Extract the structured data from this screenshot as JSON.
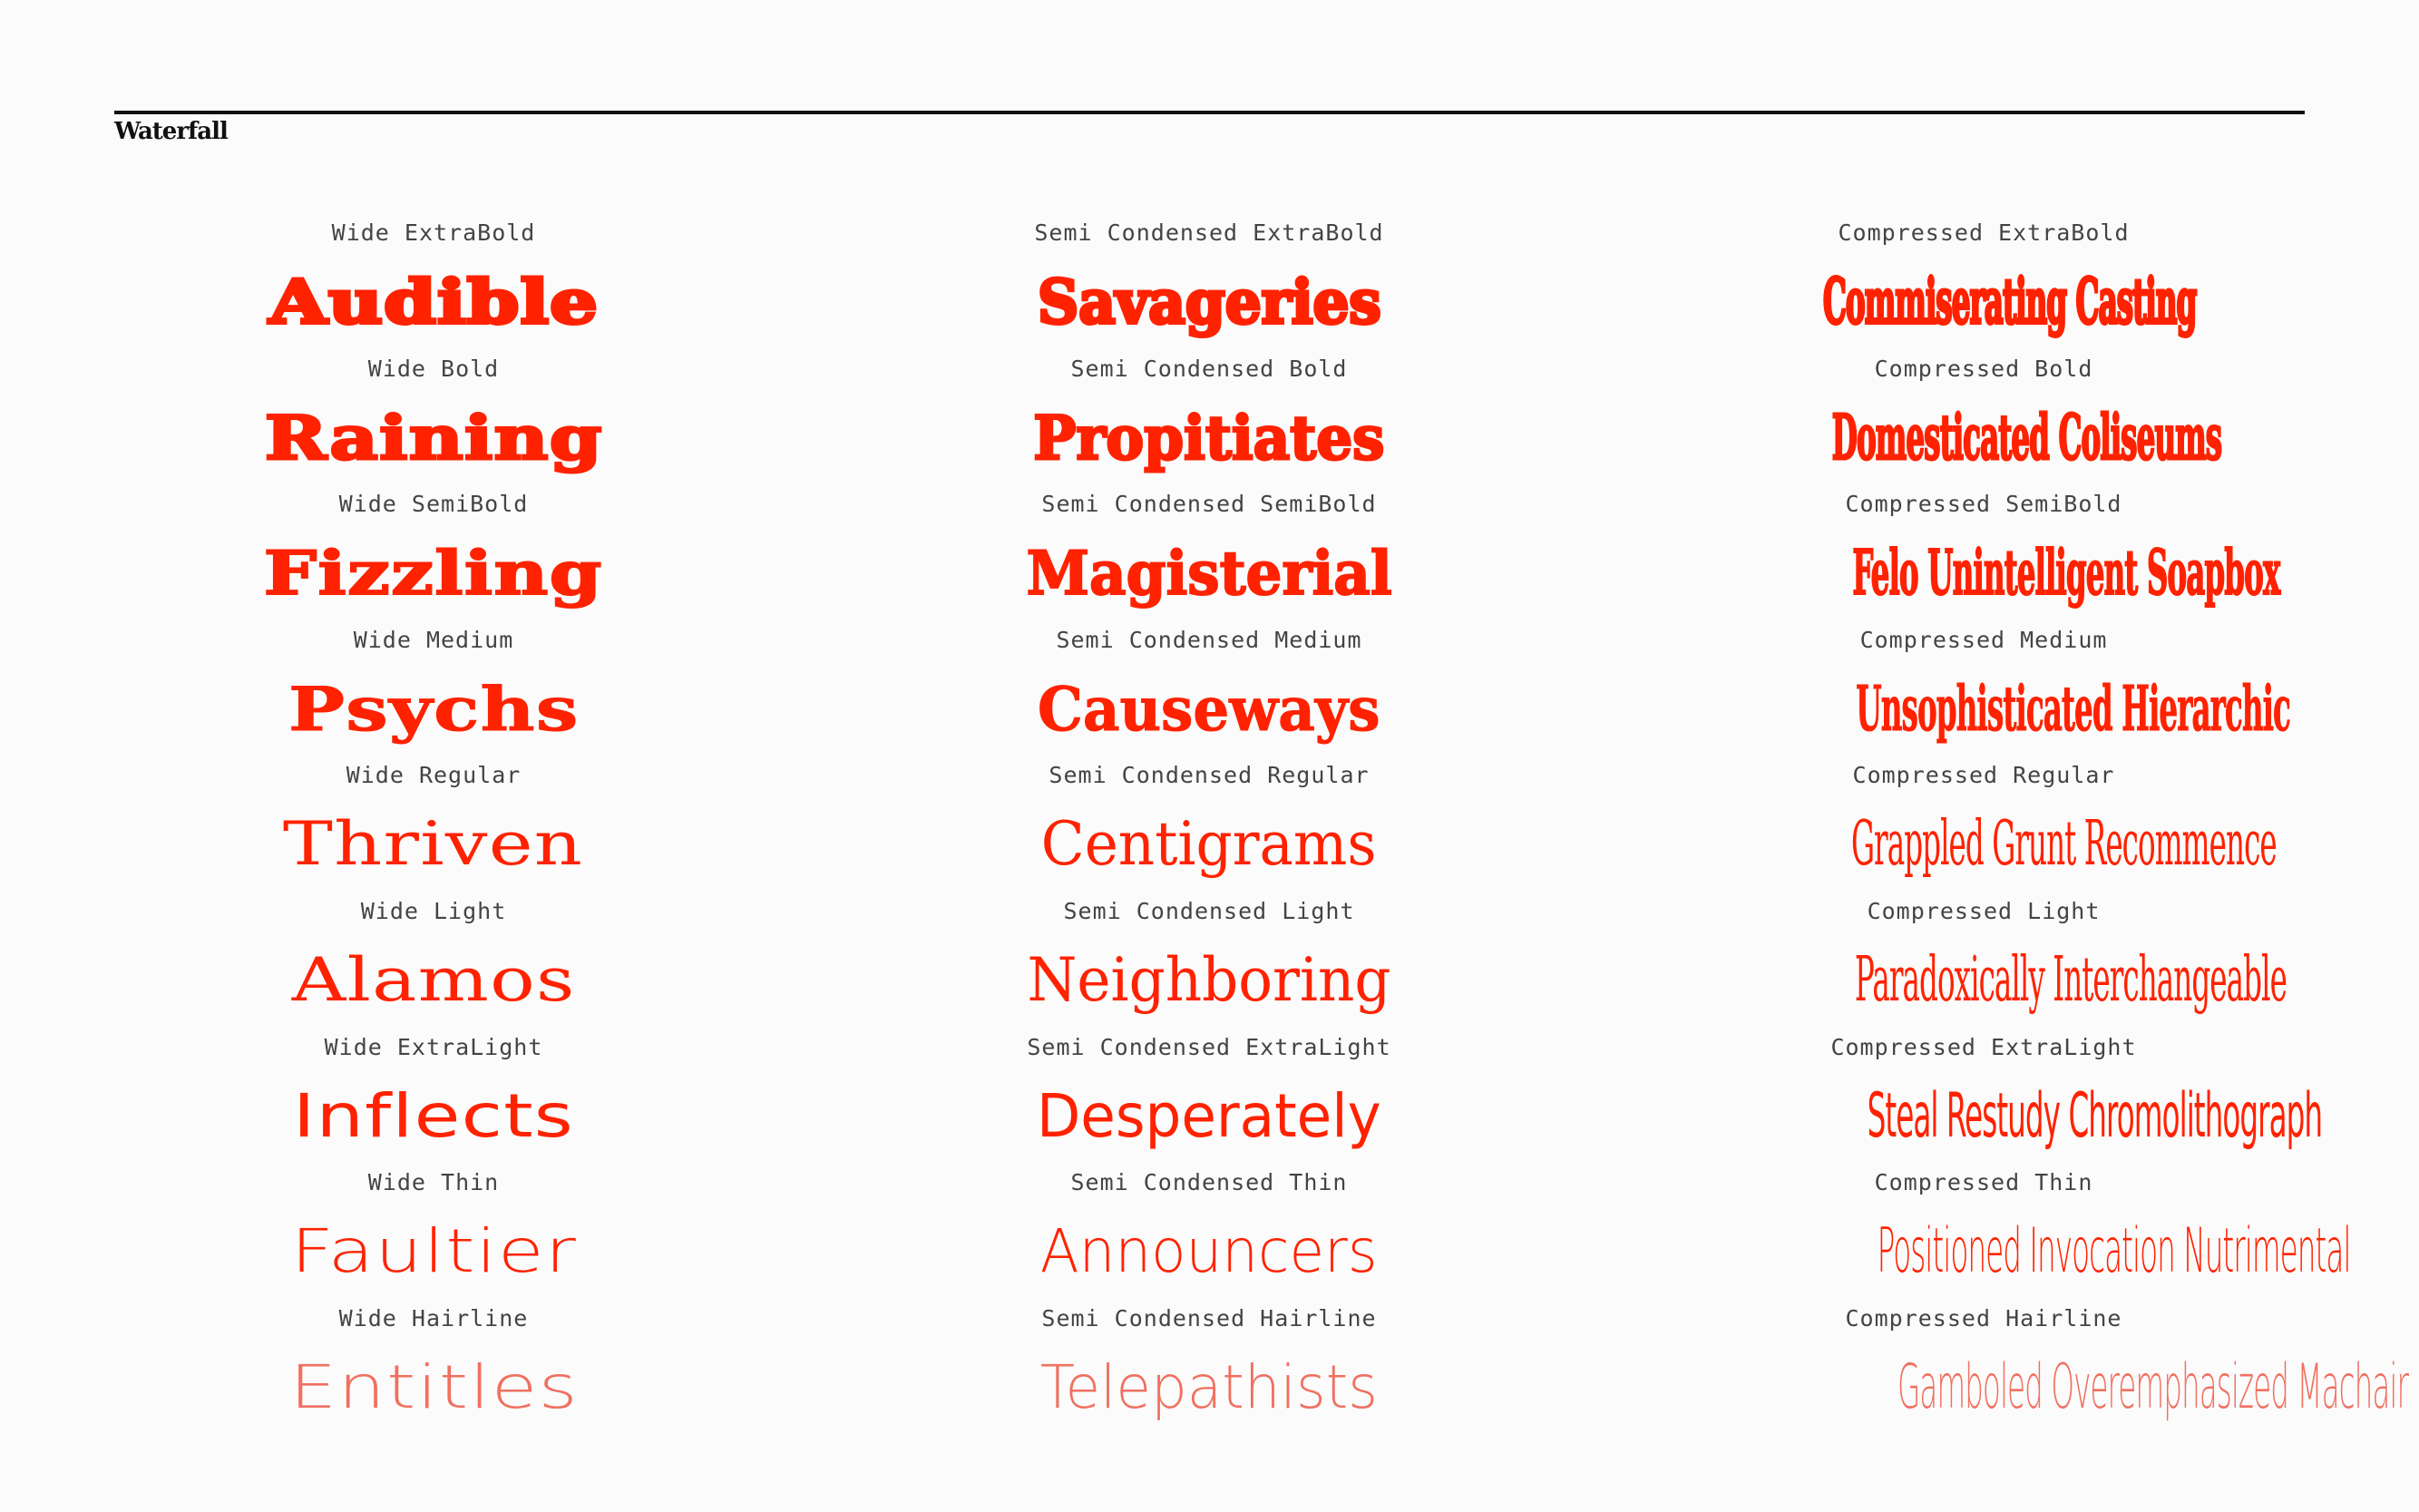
{
  "header": {
    "title": "Waterfall"
  },
  "colors": {
    "accent": "#ff2200",
    "hairline": "#f07060",
    "text": "#444444",
    "rule": "#111111"
  },
  "columns": [
    {
      "rows": [
        {
          "label": "Wide ExtraBold",
          "sample": "Audible",
          "weight": 900
        },
        {
          "label": "Wide Bold",
          "sample": "Raining",
          "weight": 800
        },
        {
          "label": "Wide SemiBold",
          "sample": "Fizzling",
          "weight": 700
        },
        {
          "label": "Wide Medium",
          "sample": "Psychs",
          "weight": 600
        },
        {
          "label": "Wide Regular",
          "sample": "Thriven",
          "weight": 400
        },
        {
          "label": "Wide Light",
          "sample": "Alamos",
          "weight": 300
        },
        {
          "label": "Wide ExtraLight",
          "sample": "Inflects",
          "weight": 200
        },
        {
          "label": "Wide Thin",
          "sample": "Faultier",
          "weight": 100
        },
        {
          "label": "Wide Hairline",
          "sample": "Entitles",
          "weight": 50
        }
      ]
    },
    {
      "rows": [
        {
          "label": "Semi Condensed ExtraBold",
          "sample": "Savageries",
          "weight": 900
        },
        {
          "label": "Semi Condensed Bold",
          "sample": "Propitiates",
          "weight": 800
        },
        {
          "label": "Semi Condensed SemiBold",
          "sample": "Magisterial",
          "weight": 700
        },
        {
          "label": "Semi Condensed Medium",
          "sample": "Causeways",
          "weight": 600
        },
        {
          "label": "Semi Condensed Regular",
          "sample": "Centigrams",
          "weight": 400
        },
        {
          "label": "Semi Condensed Light",
          "sample": "Neighboring",
          "weight": 300
        },
        {
          "label": "Semi Condensed ExtraLight",
          "sample": "Desperately",
          "weight": 200
        },
        {
          "label": "Semi Condensed Thin",
          "sample": "Announcers",
          "weight": 100
        },
        {
          "label": "Semi Condensed Hairline",
          "sample": "Telepathists",
          "weight": 50
        }
      ]
    },
    {
      "rows": [
        {
          "label": "Compressed ExtraBold",
          "sample": "Commiserating Casting",
          "weight": 900
        },
        {
          "label": "Compressed Bold",
          "sample": "Domesticated Coliseums",
          "weight": 800
        },
        {
          "label": "Compressed SemiBold",
          "sample": "Felo Unintelligent Soapbox",
          "weight": 700
        },
        {
          "label": "Compressed Medium",
          "sample": "Unsophisticated Hierarchic",
          "weight": 600
        },
        {
          "label": "Compressed Regular",
          "sample": "Grappled Grunt Recommence",
          "weight": 400
        },
        {
          "label": "Compressed Light",
          "sample": "Paradoxically Interchangeable",
          "weight": 300
        },
        {
          "label": "Compressed ExtraLight",
          "sample": "Steal Restudy Chromolithograph",
          "weight": 200
        },
        {
          "label": "Compressed Thin",
          "sample": "Positioned Invocation Nutrimental",
          "weight": 100
        },
        {
          "label": "Compressed Hairline",
          "sample": "Gamboled Overemphasized Machair",
          "weight": 50
        }
      ]
    }
  ]
}
